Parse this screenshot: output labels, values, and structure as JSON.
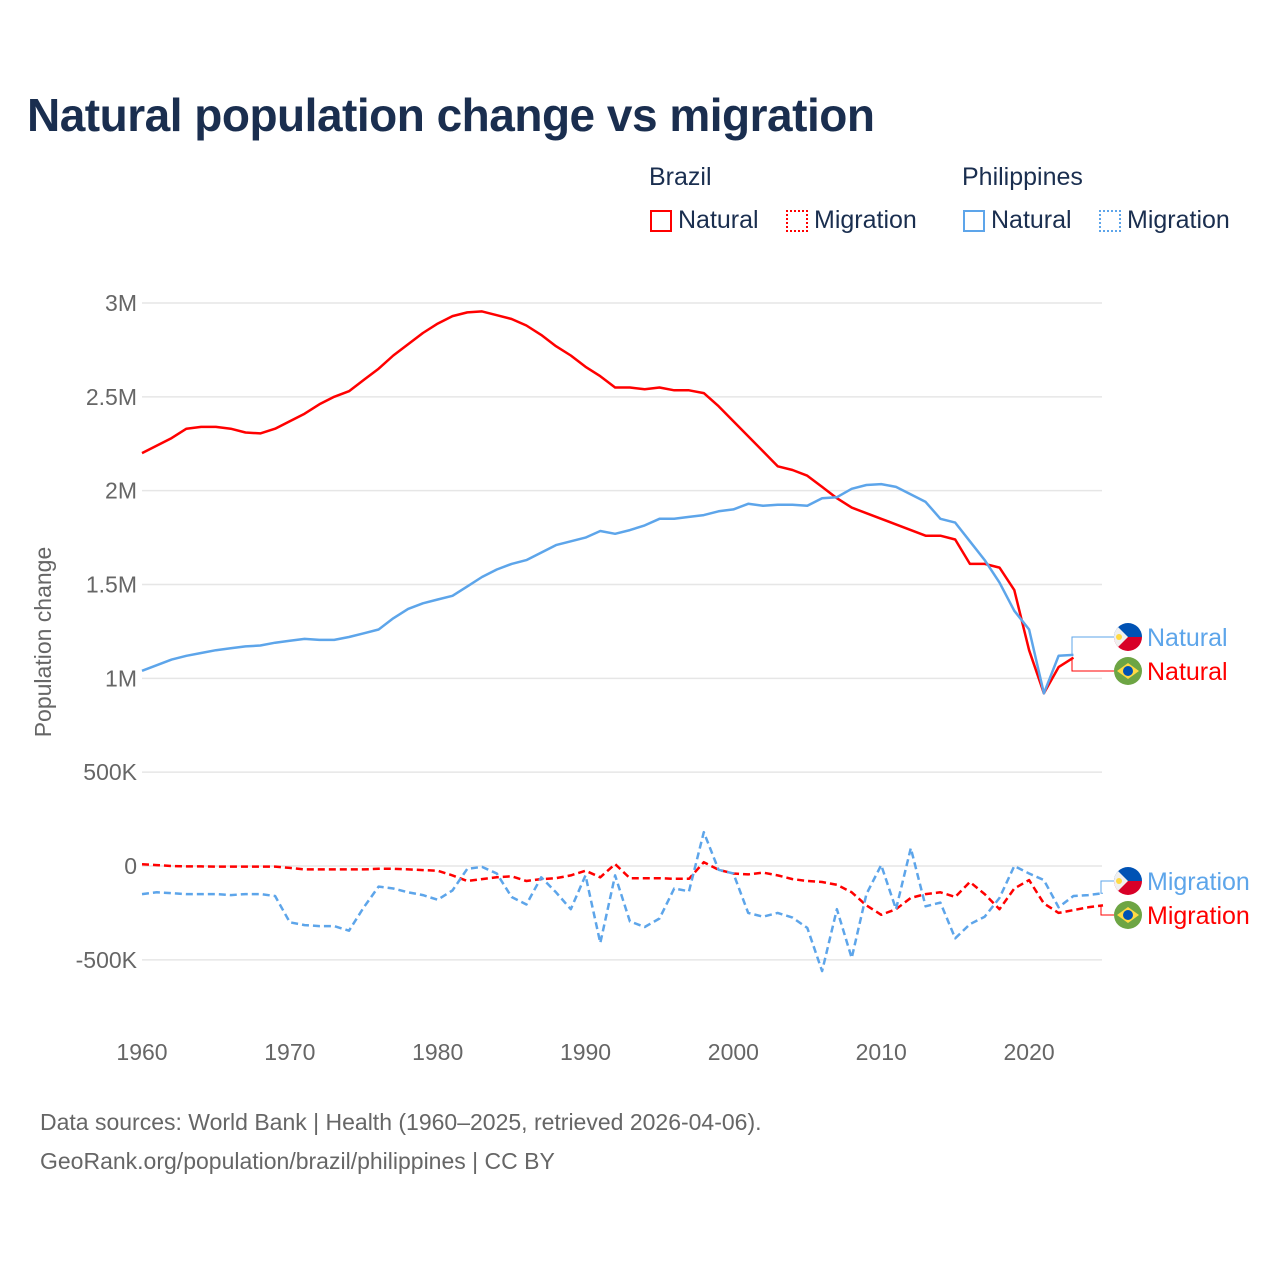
{
  "title": "Natural population change vs migration",
  "legend": {
    "groups": [
      {
        "name": "Brazil",
        "items": [
          {
            "label": "Natural",
            "style": "solid"
          },
          {
            "label": "Migration",
            "style": "dotted"
          }
        ],
        "color": "#ff0000"
      },
      {
        "name": "Philippines",
        "items": [
          {
            "label": "Natural",
            "style": "solid"
          },
          {
            "label": "Migration",
            "style": "dotted"
          }
        ],
        "color": "#5da5ea"
      }
    ]
  },
  "footer": {
    "line1": "Data sources: World Bank | Health (1960–2025, retrieved 2026-04-06).",
    "line2": "GeoRank.org/population/brazil/philippines | CC BY"
  },
  "chart_data": {
    "type": "line",
    "title": "Natural population change vs migration",
    "xlabel": "",
    "ylabel": "Population change",
    "xlim": [
      1960,
      2025
    ],
    "ylim": [
      -500000,
      3000000
    ],
    "x_ticks": [
      1960,
      1970,
      1980,
      1990,
      2000,
      2010,
      2020
    ],
    "x_tick_labels": [
      "1960",
      "1970",
      "1980",
      "1990",
      "2000",
      "2010",
      "2020"
    ],
    "y_ticks": [
      3000000,
      2500000,
      2000000,
      1500000,
      1000000,
      500000,
      0,
      -500000
    ],
    "y_tick_labels": [
      "3M",
      "2.5M",
      "2M",
      "1.5M",
      "1M",
      "500K",
      "0",
      "-500K"
    ],
    "grid": true,
    "series": [
      {
        "name": "Brazil Natural",
        "end_label": "Natural",
        "country": "Brazil",
        "color": "#ff0000",
        "dash": false,
        "start_year": 1960,
        "values": [
          2200000,
          2240000,
          2280000,
          2330000,
          2340000,
          2340000,
          2330000,
          2310000,
          2305000,
          2330000,
          2370000,
          2410000,
          2460000,
          2500000,
          2530000,
          2590000,
          2650000,
          2720000,
          2780000,
          2840000,
          2890000,
          2930000,
          2950000,
          2955000,
          2935000,
          2915000,
          2880000,
          2830000,
          2770000,
          2720000,
          2660000,
          2610000,
          2550000,
          2550000,
          2540000,
          2550000,
          2535000,
          2535000,
          2520000,
          2450000,
          2370000,
          2290000,
          2210000,
          2130000,
          2110000,
          2080000,
          2020000,
          1960000,
          1910000,
          1880000,
          1850000,
          1820000,
          1790000,
          1760000,
          1760000,
          1740000,
          1610000,
          1610000,
          1590000,
          1470000,
          1150000,
          920000,
          1060000,
          1110000
        ]
      },
      {
        "name": "Philippines Natural",
        "end_label": "Natural",
        "country": "Philippines",
        "color": "#5da5ea",
        "dash": false,
        "start_year": 1960,
        "values": [
          1040000,
          1070000,
          1100000,
          1120000,
          1135000,
          1150000,
          1160000,
          1170000,
          1175000,
          1190000,
          1200000,
          1210000,
          1205000,
          1205000,
          1220000,
          1240000,
          1260000,
          1320000,
          1370000,
          1400000,
          1420000,
          1440000,
          1490000,
          1540000,
          1580000,
          1610000,
          1630000,
          1670000,
          1710000,
          1730000,
          1750000,
          1785000,
          1770000,
          1790000,
          1815000,
          1850000,
          1850000,
          1860000,
          1870000,
          1890000,
          1900000,
          1930000,
          1920000,
          1925000,
          1925000,
          1920000,
          1960000,
          1965000,
          2010000,
          2030000,
          2035000,
          2020000,
          1980000,
          1940000,
          1850000,
          1830000,
          1730000,
          1630000,
          1510000,
          1360000,
          1260000,
          920000,
          1120000,
          1125000
        ]
      },
      {
        "name": "Brazil Migration",
        "end_label": "Migration",
        "country": "Brazil",
        "color": "#ff0000",
        "dash": true,
        "start_year": 1960,
        "values": [
          9000,
          5000,
          0,
          -2000,
          -2000,
          -3000,
          -3000,
          -3000,
          -3000,
          -3000,
          -10000,
          -18000,
          -18000,
          -18000,
          -18000,
          -18000,
          -15000,
          -15000,
          -18000,
          -22000,
          -25000,
          -50000,
          -80000,
          -70000,
          -60000,
          -55000,
          -80000,
          -70000,
          -65000,
          -50000,
          -25000,
          -60000,
          10000,
          -65000,
          -65000,
          -65000,
          -68000,
          -68000,
          20000,
          -20000,
          -40000,
          -45000,
          -35000,
          -50000,
          -70000,
          -80000,
          -85000,
          -100000,
          -140000,
          -210000,
          -260000,
          -230000,
          -170000,
          -150000,
          -140000,
          -165000,
          -85000,
          -150000,
          -230000,
          -120000,
          -75000,
          -200000,
          -250000,
          -235000,
          -220000,
          -210000
        ]
      },
      {
        "name": "Philippines Migration",
        "end_label": "Migration",
        "country": "Philippines",
        "color": "#5da5ea",
        "dash": true,
        "start_year": 1960,
        "values": [
          -150000,
          -140000,
          -145000,
          -150000,
          -150000,
          -150000,
          -155000,
          -150000,
          -150000,
          -160000,
          -300000,
          -315000,
          -320000,
          -320000,
          -345000,
          -220000,
          -110000,
          -120000,
          -140000,
          -155000,
          -180000,
          -130000,
          -15000,
          -5000,
          -40000,
          -165000,
          -205000,
          -60000,
          -140000,
          -230000,
          -50000,
          -410000,
          -50000,
          -295000,
          -325000,
          -280000,
          -120000,
          -135000,
          180000,
          -20000,
          -40000,
          -250000,
          -270000,
          -250000,
          -275000,
          -330000,
          -560000,
          -230000,
          -490000,
          -150000,
          5000,
          -230000,
          95000,
          -215000,
          -195000,
          -385000,
          -310000,
          -270000,
          -170000,
          0,
          -40000,
          -75000,
          -220000,
          -160000,
          -155000,
          -145000
        ]
      }
    ]
  }
}
